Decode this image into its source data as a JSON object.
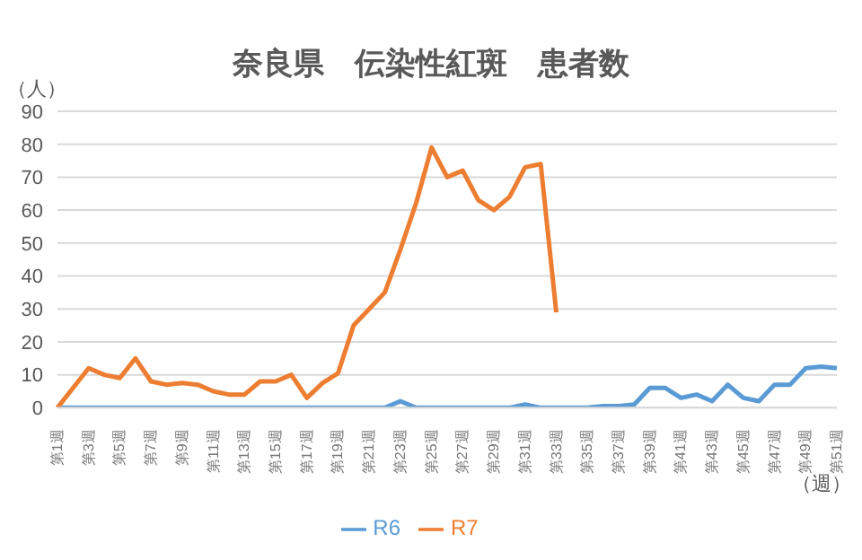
{
  "chart_data": {
    "type": "line",
    "title": "奈良県　伝染性紅斑　患者数",
    "ylabel": "（人）",
    "xlabel": "（週）",
    "categories": [
      "第1週",
      null,
      "第3週",
      null,
      "第5週",
      null,
      "第7週",
      null,
      "第9週",
      null,
      "第11週",
      null,
      "第13週",
      null,
      "第15週",
      null,
      "第17週",
      null,
      "第19週",
      null,
      "第21週",
      null,
      "第23週",
      null,
      "第25週",
      null,
      "第27週",
      null,
      "第29週",
      null,
      "第31週",
      null,
      "第33週",
      null,
      "第35週",
      null,
      "第37週",
      null,
      "第39週",
      null,
      "第41週",
      null,
      "第43週",
      null,
      "第45週",
      null,
      "第47週",
      null,
      "第49週",
      null,
      "第51週"
    ],
    "series": [
      {
        "name": "R6",
        "color": "#5b9bd5",
        "values": [
          0,
          0,
          0,
          0,
          0,
          0,
          0,
          0,
          0,
          0,
          0,
          0,
          0,
          0,
          0,
          0,
          0,
          0,
          0,
          0,
          0,
          0,
          2,
          0,
          0,
          0,
          0,
          0,
          0,
          0,
          1,
          0,
          0,
          0,
          0,
          0.5,
          0.5,
          1,
          6,
          6,
          3,
          4,
          2,
          7,
          3,
          2,
          7,
          7,
          12,
          12.5,
          12
        ]
      },
      {
        "name": "R7",
        "color": "#ed7d31",
        "values": [
          0,
          6,
          12,
          10,
          9,
          15,
          8,
          7,
          7.5,
          7,
          5,
          4,
          4,
          8,
          8,
          10,
          3,
          7.5,
          10.5,
          25,
          30,
          35,
          48,
          62,
          79,
          70,
          72,
          63,
          60,
          64,
          73,
          74,
          29,
          null,
          null,
          null,
          null,
          null,
          null,
          null,
          null,
          null,
          null,
          null,
          null,
          null,
          null,
          null,
          null,
          null,
          null
        ]
      }
    ],
    "ylim": [
      0,
      90
    ],
    "yticks": [
      0,
      10,
      20,
      30,
      40,
      50,
      60,
      70,
      80,
      90
    ],
    "grid": "y",
    "legend": "bottom",
    "marker": "none"
  }
}
